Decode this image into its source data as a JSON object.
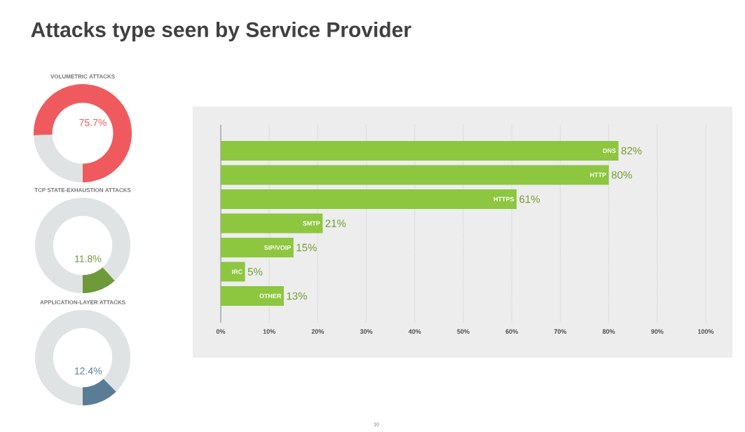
{
  "chart_data": [
    {
      "type": "other",
      "title": "Attacks type seen by Service Provider",
      "annotations": [
        "10"
      ]
    },
    {
      "type": "donut",
      "title": "VOLUMETRIC ATTACKS",
      "categories": [
        null,
        null
      ],
      "values": [
        75.7,
        24.3
      ],
      "colors": [
        "#ef5a5f",
        "#dfe3e3"
      ],
      "value_labels": [
        "75.7%",
        null
      ]
    },
    {
      "type": "donut",
      "title": "TCP STATE-EXHAUSTION ATTACKS",
      "categories": [
        null,
        null
      ],
      "values": [
        11.8,
        88.2
      ],
      "colors": [
        "#6f9a3c",
        "#dfe3e3"
      ],
      "value_labels": [
        "11.8%",
        null
      ]
    },
    {
      "type": "donut",
      "title": "APPLICATION-LAYER ATTACKS",
      "categories": [
        null,
        null
      ],
      "values": [
        12.4,
        87.6
      ],
      "colors": [
        "#5b7c95",
        "#dfe3e3"
      ],
      "value_labels": [
        "12.4%",
        null
      ]
    },
    {
      "type": "bar",
      "orientation": "horizontal",
      "categories": [
        "DNS",
        "HTTP",
        "HTTPS",
        "SMTP",
        "SIP/VOIP",
        "IRC",
        "OTHER"
      ],
      "values": [
        82,
        80,
        61,
        21,
        15,
        5,
        13
      ],
      "color": "#8dc63f",
      "value_labels": [
        "82%",
        "80%",
        "61%",
        "21%",
        "15%",
        "5%",
        "13%"
      ],
      "xlim": [
        0,
        100
      ],
      "grid": "x",
      "xticks": [
        {
          "value": 0,
          "label": "0%"
        },
        {
          "value": 10,
          "label": "10%"
        },
        {
          "value": 20,
          "label": "20%"
        },
        {
          "value": 30,
          "label": "30%"
        },
        {
          "value": 40,
          "label": "40%"
        },
        {
          "value": 50,
          "label": "50%"
        },
        {
          "value": 60,
          "label": "60%"
        },
        {
          "value": 70,
          "label": "70%"
        },
        {
          "value": 80,
          "label": "80%"
        },
        {
          "value": 90,
          "label": "90%"
        },
        {
          "value": 100,
          "label": "100%"
        }
      ]
    }
  ]
}
